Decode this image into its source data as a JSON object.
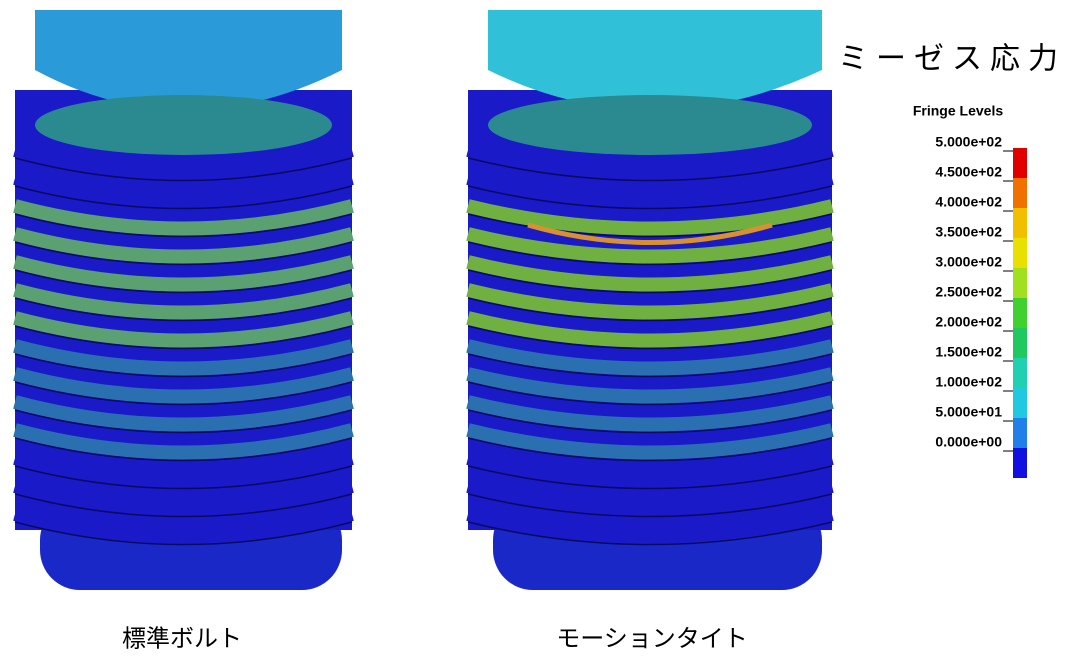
{
  "title": "ミーゼス応力",
  "legend": {
    "title": "Fringe Levels",
    "levels": [
      "5.000e+02",
      "4.500e+02",
      "4.000e+02",
      "3.500e+02",
      "3.000e+02",
      "2.500e+02",
      "2.000e+02",
      "1.500e+02",
      "1.000e+02",
      "5.000e+01",
      "0.000e+00"
    ],
    "colors": [
      "#e00000",
      "#f07000",
      "#f0c000",
      "#e8e000",
      "#a0e020",
      "#40d030",
      "#20c860",
      "#20d0b0",
      "#20c8e0",
      "#2080e8",
      "#1010e0"
    ]
  },
  "images": [
    {
      "caption": "標準ボルト"
    },
    {
      "caption": "モーションタイト"
    }
  ]
}
